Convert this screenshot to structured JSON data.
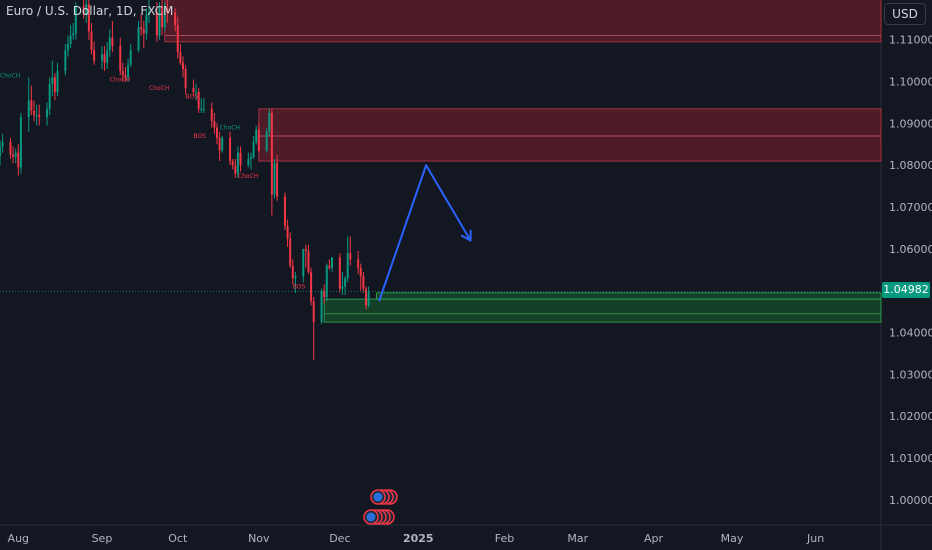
{
  "header": {
    "title": "Euro / U.S. Dollar, 1D, FXCM"
  },
  "toolbar": {
    "currency_label": "USD"
  },
  "last_price": {
    "label": "1.04982",
    "value": 1.04982
  },
  "colors": {
    "background": "#131722",
    "up_candle": "#089981",
    "down_candle": "#f23645",
    "supply_zone": "#6b1a22",
    "demand_zone": "#0e4a1f",
    "projection_arrow": "#2962ff",
    "axis_text": "#b2b5be",
    "grid": "#1e222d"
  },
  "chart_data": {
    "type": "candlestick",
    "title": "Euro / U.S. Dollar, 1D, FXCM",
    "ylim": [
      0.994,
      1.1195
    ],
    "xlim": [
      "2024-07-25",
      "2025-06-27"
    ],
    "grid": false,
    "legend": "none",
    "y_ticks": [
      1.0,
      1.01,
      1.02,
      1.03,
      1.04,
      1.05,
      1.06,
      1.07,
      1.08,
      1.09,
      1.1,
      1.11
    ],
    "y_tick_labels": [
      "1.00000",
      "1.01000",
      "1.02000",
      "1.03000",
      "1.04000",
      "",
      "1.06000",
      "1.07000",
      "1.08000",
      "1.09000",
      "1.10000",
      "1.11000"
    ],
    "x_ticks": [
      {
        "label": "Aug",
        "date": "2024-08-01"
      },
      {
        "label": "Sep",
        "date": "2024-09-02"
      },
      {
        "label": "Oct",
        "date": "2024-10-01"
      },
      {
        "label": "Nov",
        "date": "2024-11-01"
      },
      {
        "label": "Dec",
        "date": "2024-12-02"
      },
      {
        "label": "2025",
        "date": "2025-01-01"
      },
      {
        "label": "Feb",
        "date": "2025-02-03"
      },
      {
        "label": "Mar",
        "date": "2025-03-03"
      },
      {
        "label": "Apr",
        "date": "2025-04-01"
      },
      {
        "label": "May",
        "date": "2025-05-01"
      },
      {
        "label": "Jun",
        "date": "2025-06-02"
      }
    ],
    "series": [
      {
        "name": "EURUSD",
        "dates": [
          "2024-07-25",
          "2024-07-26",
          "2024-07-29",
          "2024-07-30",
          "2024-07-31",
          "2024-08-01",
          "2024-08-02",
          "2024-08-05",
          "2024-08-06",
          "2024-08-07",
          "2024-08-08",
          "2024-08-09",
          "2024-08-12",
          "2024-08-13",
          "2024-08-14",
          "2024-08-15",
          "2024-08-16",
          "2024-08-19",
          "2024-08-20",
          "2024-08-21",
          "2024-08-22",
          "2024-08-23",
          "2024-08-26",
          "2024-08-27",
          "2024-08-28",
          "2024-08-29",
          "2024-08-30",
          "2024-09-02",
          "2024-09-03",
          "2024-09-04",
          "2024-09-05",
          "2024-09-06",
          "2024-09-09",
          "2024-09-10",
          "2024-09-11",
          "2024-09-12",
          "2024-09-13",
          "2024-09-16",
          "2024-09-17",
          "2024-09-18",
          "2024-09-19",
          "2024-09-20",
          "2024-09-23",
          "2024-09-24",
          "2024-09-25",
          "2024-09-26",
          "2024-09-27",
          "2024-09-30",
          "2024-10-01",
          "2024-10-02",
          "2024-10-03",
          "2024-10-04",
          "2024-10-07",
          "2024-10-08",
          "2024-10-09",
          "2024-10-10",
          "2024-10-11",
          "2024-10-14",
          "2024-10-15",
          "2024-10-16",
          "2024-10-17",
          "2024-10-18",
          "2024-10-21",
          "2024-10-22",
          "2024-10-23",
          "2024-10-24",
          "2024-10-25",
          "2024-10-28",
          "2024-10-29",
          "2024-10-30",
          "2024-10-31",
          "2024-11-01",
          "2024-11-04",
          "2024-11-05",
          "2024-11-06",
          "2024-11-07",
          "2024-11-08",
          "2024-11-11",
          "2024-11-12",
          "2024-11-13",
          "2024-11-14",
          "2024-11-15",
          "2024-11-18",
          "2024-11-19",
          "2024-11-20",
          "2024-11-21",
          "2024-11-22",
          "2024-11-25",
          "2024-11-26",
          "2024-11-27",
          "2024-11-28",
          "2024-11-29",
          "2024-12-02",
          "2024-12-03",
          "2024-12-04",
          "2024-12-05",
          "2024-12-06",
          "2024-12-09",
          "2024-12-10",
          "2024-12-11",
          "2024-12-12",
          "2024-12-13"
        ],
        "open": [
          1.0822,
          1.0845,
          1.0855,
          1.0825,
          1.082,
          1.083,
          1.0795,
          1.0915,
          1.0955,
          1.093,
          1.092,
          1.092,
          1.0915,
          1.0935,
          1.0995,
          1.101,
          1.0975,
          1.1025,
          1.1075,
          1.109,
          1.111,
          1.1115,
          1.118,
          1.116,
          1.1185,
          1.112,
          1.1075,
          1.105,
          1.1065,
          1.1045,
          1.1075,
          1.1105,
          1.1085,
          1.1025,
          1.1015,
          1.101,
          1.104,
          1.1075,
          1.113,
          1.1125,
          1.1115,
          1.116,
          1.1165,
          1.111,
          1.118,
          1.113,
          1.1175,
          1.1165,
          1.1135,
          1.107,
          1.1045,
          1.103,
          1.0985,
          1.0975,
          1.0975,
          1.0935,
          1.0935,
          1.0935,
          1.0905,
          1.089,
          1.0865,
          1.0835,
          1.0865,
          1.081,
          1.08,
          1.078,
          1.083,
          1.08,
          1.0815,
          1.082,
          1.0855,
          1.0885,
          1.0835,
          1.088,
          1.0925,
          1.073,
          1.0805,
          1.0725,
          1.0655,
          1.0625,
          1.056,
          1.053,
          1.0535,
          1.06,
          1.0595,
          1.0545,
          1.0475,
          1.0425,
          1.05,
          1.0485,
          1.056,
          1.0555,
          1.058,
          1.0505,
          1.051,
          1.053,
          1.059,
          1.0575,
          1.0555,
          1.0535,
          1.0505,
          1.0465
        ],
        "high": [
          1.086,
          1.0875,
          1.0865,
          1.0845,
          1.084,
          1.085,
          1.0925,
          1.101,
          1.099,
          1.0955,
          1.0945,
          1.0945,
          1.095,
          1.101,
          1.105,
          1.102,
          1.1045,
          1.109,
          1.111,
          1.1135,
          1.114,
          1.119,
          1.12,
          1.1195,
          1.12,
          1.114,
          1.1095,
          1.1085,
          1.1085,
          1.1095,
          1.1125,
          1.1145,
          1.1105,
          1.1045,
          1.1035,
          1.1055,
          1.109,
          1.1145,
          1.116,
          1.1145,
          1.1175,
          1.1195,
          1.119,
          1.119,
          1.121,
          1.119,
          1.12,
          1.1175,
          1.1155,
          1.109,
          1.106,
          1.104,
          1.1005,
          1.0995,
          1.0985,
          1.096,
          1.096,
          1.095,
          1.0925,
          1.09,
          1.088,
          1.087,
          1.088,
          1.0815,
          1.0815,
          1.0845,
          1.0845,
          1.083,
          1.083,
          1.087,
          1.0895,
          1.09,
          1.089,
          1.0935,
          1.0935,
          1.0815,
          1.0825,
          1.0735,
          1.067,
          1.064,
          1.0575,
          1.0545,
          1.06,
          1.061,
          1.061,
          1.0555,
          1.0485,
          1.0505,
          1.0515,
          1.0565,
          1.0575,
          1.058,
          1.059,
          1.0545,
          1.0535,
          1.063,
          1.063,
          1.0595,
          1.0565,
          1.0545,
          1.051,
          1.051
        ],
        "low": [
          1.08,
          1.083,
          1.0815,
          1.0805,
          1.0805,
          1.0775,
          1.078,
          1.088,
          1.092,
          1.0905,
          1.0895,
          1.0895,
          1.0895,
          1.092,
          1.0965,
          1.0955,
          1.0965,
          1.1015,
          1.106,
          1.108,
          1.11,
          1.11,
          1.115,
          1.114,
          1.11,
          1.1065,
          1.104,
          1.103,
          1.1025,
          1.103,
          1.106,
          1.107,
          1.1015,
          1.1,
          1.1,
          1.1,
          1.1035,
          1.107,
          1.111,
          1.108,
          1.11,
          1.114,
          1.1095,
          1.11,
          1.111,
          1.112,
          1.114,
          1.112,
          1.1055,
          1.104,
          1.101,
          1.097,
          1.0965,
          1.0955,
          1.0925,
          1.0925,
          1.0925,
          1.089,
          1.0875,
          1.085,
          1.081,
          1.083,
          1.08,
          1.079,
          1.077,
          1.077,
          1.0785,
          1.0795,
          1.079,
          1.0815,
          1.085,
          1.083,
          1.083,
          1.087,
          1.068,
          1.072,
          1.0715,
          1.0645,
          1.0605,
          1.0555,
          1.0515,
          1.0495,
          1.052,
          1.0555,
          1.054,
          1.0465,
          1.0335,
          1.042,
          1.047,
          1.0475,
          1.055,
          1.0545,
          1.0495,
          1.049,
          1.049,
          1.052,
          1.056,
          1.054,
          1.05,
          1.0495,
          1.0455,
          1.046
        ],
        "close": [
          1.0845,
          1.0855,
          1.0825,
          1.082,
          1.083,
          1.0795,
          1.0915,
          1.0955,
          1.093,
          1.092,
          1.092,
          1.0915,
          1.0935,
          1.0995,
          1.101,
          1.0975,
          1.1025,
          1.1075,
          1.109,
          1.111,
          1.1115,
          1.118,
          1.116,
          1.1185,
          1.112,
          1.1075,
          1.105,
          1.1065,
          1.1045,
          1.1075,
          1.1105,
          1.1085,
          1.1025,
          1.1015,
          1.101,
          1.104,
          1.1075,
          1.113,
          1.1125,
          1.1115,
          1.116,
          1.1165,
          1.111,
          1.118,
          1.113,
          1.1175,
          1.1165,
          1.1135,
          1.107,
          1.1045,
          1.103,
          1.0985,
          1.0975,
          1.0975,
          1.0935,
          1.0935,
          1.0935,
          1.0905,
          1.089,
          1.0865,
          1.0835,
          1.0865,
          1.081,
          1.08,
          1.078,
          1.083,
          1.08,
          1.0815,
          1.082,
          1.0855,
          1.0885,
          1.0835,
          1.088,
          1.0925,
          1.073,
          1.0805,
          1.0725,
          1.0655,
          1.0625,
          1.056,
          1.053,
          1.0535,
          1.06,
          1.0595,
          1.0545,
          1.0475,
          1.0425,
          1.05,
          1.0485,
          1.056,
          1.0555,
          1.058,
          1.0505,
          1.051,
          1.053,
          1.059,
          1.0575,
          1.0555,
          1.0535,
          1.0505,
          1.0465,
          1.0498
        ]
      }
    ],
    "zones": [
      {
        "kind": "supply",
        "x0": "2024-09-26",
        "x1": "2025-06-27",
        "y0": 1.1095,
        "y1": 1.1215,
        "midline": 1.111
      },
      {
        "kind": "supply",
        "x0": "2024-11-01",
        "x1": "2025-06-27",
        "y0": 1.081,
        "y1": 1.0935,
        "midline": 1.087
      },
      {
        "kind": "demand",
        "x0": "2024-11-26",
        "x1": "2025-06-27",
        "y0": 1.0425,
        "y1": 1.048,
        "midline": 1.0445
      },
      {
        "kind": "demand",
        "x0": "2024-12-16",
        "x1": "2025-06-27",
        "y0": 1.048,
        "y1": 1.0495,
        "midline": null
      }
    ],
    "annotations": [
      {
        "text": "ChoCH",
        "color": "#089981",
        "date": "2024-07-25",
        "y": 1.101
      },
      {
        "text": "ChoCH",
        "color": "#089981",
        "date": "2024-09-23",
        "y": 1.1195
      },
      {
        "text": "ChoCH",
        "color": "#f23645",
        "date": "2024-09-05",
        "y": 1.1
      },
      {
        "text": "ChoCH",
        "color": "#f23645",
        "date": "2024-09-20",
        "y": 1.098
      },
      {
        "text": "BOS",
        "color": "#f23645",
        "date": "2024-10-04",
        "y": 1.096
      },
      {
        "text": "BOS",
        "color": "#f23645",
        "date": "2024-10-07",
        "y": 1.0865
      },
      {
        "text": "ChoCH",
        "color": "#089981",
        "date": "2024-10-17",
        "y": 1.0885
      },
      {
        "text": "ChoCH",
        "color": "#f23645",
        "date": "2024-10-24",
        "y": 1.077
      },
      {
        "text": "BOS",
        "color": "#f23645",
        "date": "2024-11-14",
        "y": 1.0505
      }
    ],
    "projection": {
      "points": [
        {
          "date": "2024-12-17",
          "price": 1.0475
        },
        {
          "date": "2025-01-04",
          "price": 1.08
        },
        {
          "date": "2025-01-21",
          "price": 1.062
        }
      ]
    }
  }
}
